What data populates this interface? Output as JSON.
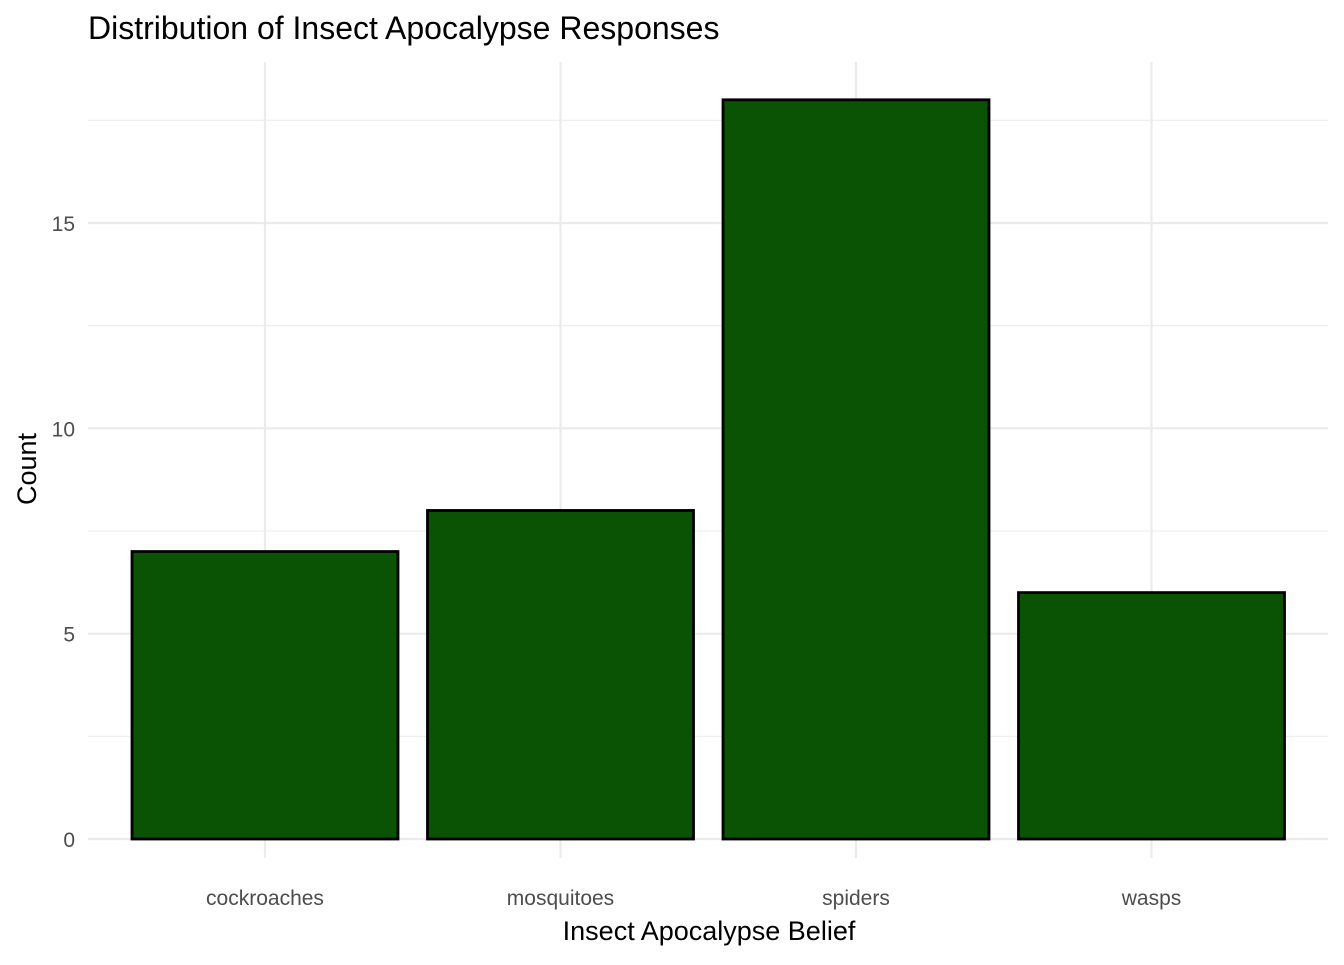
{
  "chart_data": {
    "type": "bar",
    "title": "Distribution of Insect Apocalypse Responses",
    "xlabel": "Insect Apocalypse Belief",
    "ylabel": "Count",
    "categories": [
      "cockroaches",
      "mosquitoes",
      "spiders",
      "wasps"
    ],
    "values": [
      7,
      8,
      18,
      6
    ],
    "ylim": [
      0,
      19.4
    ],
    "yticks": [
      0,
      5,
      10,
      15
    ],
    "ytick_labels": [
      "0",
      "5",
      "10",
      "15"
    ],
    "grid": true,
    "legend": "none",
    "bar_color": "#0b5304",
    "bar_outline": "#000000"
  }
}
